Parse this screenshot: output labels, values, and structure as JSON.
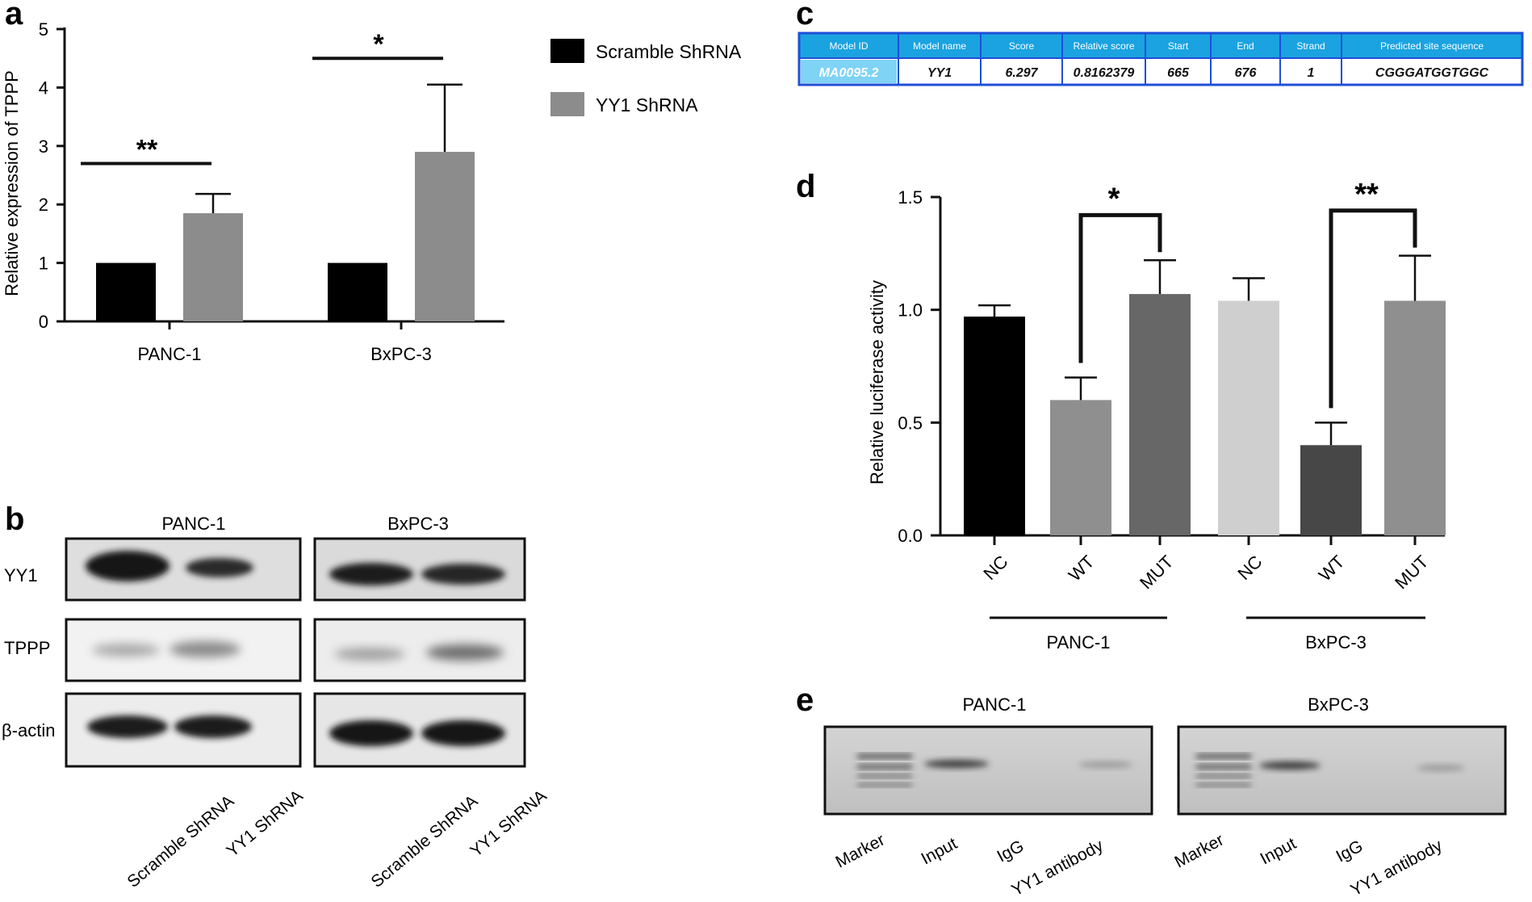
{
  "panels": {
    "a": "a",
    "b": "b",
    "c": "c",
    "d": "d",
    "e": "e"
  },
  "colors": {
    "scramble": "#000000",
    "yy1": "#8c8c8c",
    "table_header": "#1aa3e0",
    "table_border": "#1f4fd6",
    "table_highlight": "#7fd3f5",
    "d_bars": [
      "#000000",
      "#8f8f8f",
      "#676767",
      "#cfcfcf",
      "#474747",
      "#8f8f8f"
    ]
  },
  "chart_data": [
    {
      "panel": "a",
      "type": "bar",
      "categories": [
        "PANC-1",
        "BxPC-3"
      ],
      "ylabel": "Relative expression of TPPP",
      "ylim": [
        0,
        5
      ],
      "yticks": [
        0,
        1,
        2,
        3,
        4,
        5
      ],
      "series": [
        {
          "name": "Scramble ShRNA",
          "values": [
            1.0,
            1.0
          ],
          "errors": [
            0,
            0
          ]
        },
        {
          "name": "YY1 ShRNA",
          "values": [
            1.85,
            2.9
          ],
          "errors": [
            0.33,
            1.15
          ]
        }
      ],
      "significance": [
        "**",
        "*"
      ],
      "legend": "top-right"
    },
    {
      "panel": "d",
      "type": "bar",
      "categories": [
        "NC",
        "WT",
        "MUT",
        "NC",
        "WT",
        "MUT"
      ],
      "groups": [
        "PANC-1",
        "BxPC-3"
      ],
      "ylabel": "Relative luciferase activity",
      "ylim": [
        0,
        1.5
      ],
      "yticks": [
        "0.0",
        "0.5",
        "1.0",
        "1.5"
      ],
      "values": [
        0.97,
        0.6,
        1.07,
        1.04,
        0.4,
        1.04
      ],
      "errors": [
        0.05,
        0.1,
        0.15,
        0.1,
        0.1,
        0.2
      ],
      "significance": [
        "*",
        "**"
      ]
    }
  ],
  "western": {
    "cell_lines": [
      "PANC-1",
      "BxPC-3"
    ],
    "rows": [
      "YY1",
      "TPPP",
      "β-actin"
    ],
    "lanes": [
      "Scramble ShRNA",
      "YY1 ShRNA",
      "Scramble ShRNA",
      "YY1 ShRNA"
    ]
  },
  "motif_table": {
    "headers": [
      "Model ID",
      "Model name",
      "Score",
      "Relative score",
      "Start",
      "End",
      "Strand",
      "Predicted site sequence"
    ],
    "row": [
      "MA0095.2",
      "YY1",
      "6.297",
      "0.8162379",
      "665",
      "676",
      "1",
      "CGGGATGGTGGC"
    ]
  },
  "chip": {
    "cell_lines": [
      "PANC-1",
      "BxPC-3"
    ],
    "lanes": [
      "Marker",
      "Input",
      "IgG",
      "YY1 antibody"
    ]
  }
}
